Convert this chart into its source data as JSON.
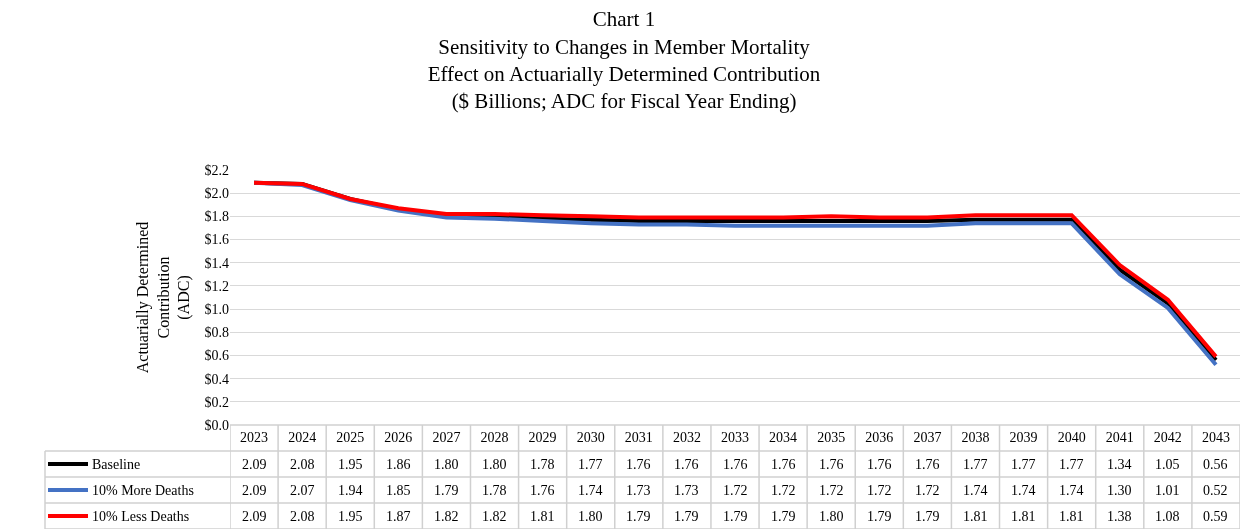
{
  "chart_data": {
    "type": "line",
    "title": "Chart 1\nSensitivity to Changes in Member Mortality\nEffect on Actuarially Determined Contribution\n($ Billions; ADC for Fiscal Year Ending)",
    "ylabel": "Actuarially Determined\nContribution\n(ADC)",
    "categories": [
      "2023",
      "2024",
      "2025",
      "2026",
      "2027",
      "2028",
      "2029",
      "2030",
      "2031",
      "2032",
      "2033",
      "2034",
      "2035",
      "2036",
      "2037",
      "2038",
      "2039",
      "2040",
      "2041",
      "2042",
      "2043"
    ],
    "series": [
      {
        "name": "Baseline",
        "color": "#000000",
        "values": [
          2.09,
          2.08,
          1.95,
          1.86,
          1.8,
          1.8,
          1.78,
          1.77,
          1.76,
          1.76,
          1.76,
          1.76,
          1.76,
          1.76,
          1.76,
          1.77,
          1.77,
          1.77,
          1.34,
          1.05,
          0.56
        ],
        "value_labels": [
          "2.09",
          "2.08",
          "1.95",
          "1.86",
          "1.80",
          "1.80",
          "1.78",
          "1.77",
          "1.76",
          "1.76",
          "1.76",
          "1.76",
          "1.76",
          "1.76",
          "1.76",
          "1.77",
          "1.77",
          "1.77",
          "1.34",
          "1.05",
          "0.56"
        ]
      },
      {
        "name": "10% More Deaths",
        "color": "#4472c4",
        "values": [
          2.09,
          2.07,
          1.94,
          1.85,
          1.79,
          1.78,
          1.76,
          1.74,
          1.73,
          1.73,
          1.72,
          1.72,
          1.72,
          1.72,
          1.72,
          1.74,
          1.74,
          1.74,
          1.3,
          1.01,
          0.52
        ],
        "value_labels": [
          "2.09",
          "2.07",
          "1.94",
          "1.85",
          "1.79",
          "1.78",
          "1.76",
          "1.74",
          "1.73",
          "1.73",
          "1.72",
          "1.72",
          "1.72",
          "1.72",
          "1.72",
          "1.74",
          "1.74",
          "1.74",
          "1.30",
          "1.01",
          "0.52"
        ]
      },
      {
        "name": "10% Less Deaths",
        "color": "#ff0000",
        "values": [
          2.09,
          2.08,
          1.95,
          1.87,
          1.82,
          1.82,
          1.81,
          1.8,
          1.79,
          1.79,
          1.79,
          1.79,
          1.8,
          1.79,
          1.79,
          1.81,
          1.81,
          1.81,
          1.38,
          1.08,
          0.59
        ],
        "value_labels": [
          "2.09",
          "2.08",
          "1.95",
          "1.87",
          "1.82",
          "1.82",
          "1.81",
          "1.80",
          "1.79",
          "1.79",
          "1.79",
          "1.79",
          "1.80",
          "1.79",
          "1.79",
          "1.81",
          "1.81",
          "1.81",
          "1.38",
          "1.08",
          "0.59"
        ]
      }
    ],
    "ylim": [
      0,
      2.2
    ],
    "yticks": [
      {
        "value": 0,
        "label": "$0.0"
      },
      {
        "value": 0.2,
        "label": "$0.2"
      },
      {
        "value": 0.4,
        "label": "$0.4"
      },
      {
        "value": 0.6,
        "label": "$0.6"
      },
      {
        "value": 0.8,
        "label": "$0.8"
      },
      {
        "value": 1.0,
        "label": "$1.0"
      },
      {
        "value": 1.2,
        "label": "$1.2"
      },
      {
        "value": 1.4,
        "label": "$1.4"
      },
      {
        "value": 1.6,
        "label": "$1.6"
      },
      {
        "value": 1.8,
        "label": "$1.8"
      },
      {
        "value": 2.0,
        "label": "$2.0"
      },
      {
        "value": 2.2,
        "label": "$2.2"
      }
    ],
    "grid": "y",
    "legend": "bottom",
    "marker": "none",
    "line_style": "solid"
  }
}
